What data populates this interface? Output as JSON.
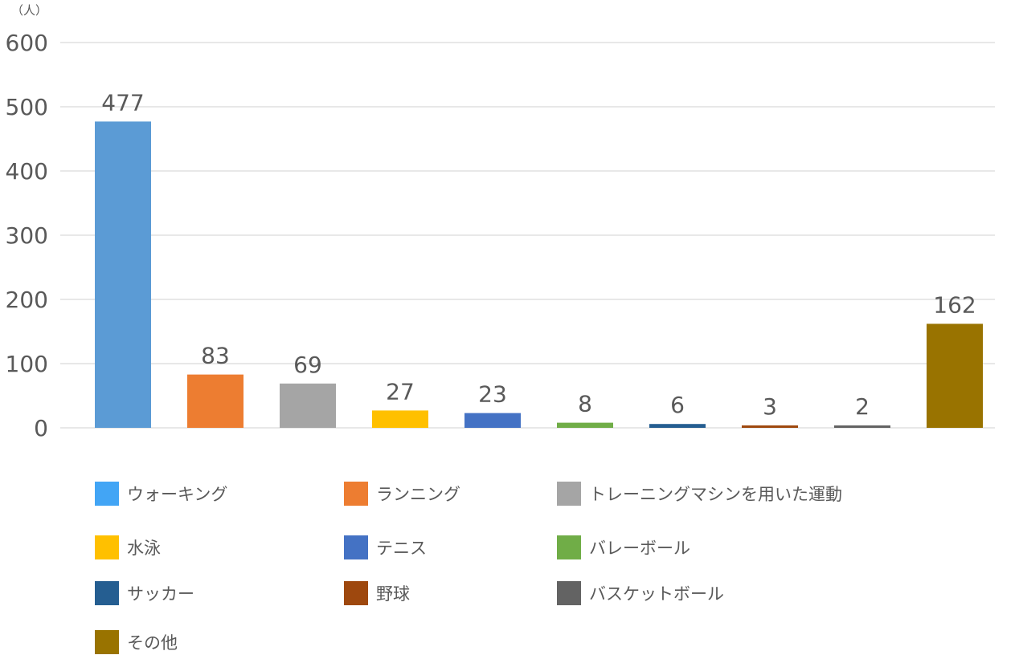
{
  "chart_data": {
    "type": "bar",
    "unit_label": "（人）",
    "categories": [
      "ウォーキング",
      "ランニング",
      "トレーニングマシンを用いた運動",
      "水泳",
      "テニス",
      "バレーボール",
      "サッカー",
      "野球",
      "バスケットボール",
      "その他"
    ],
    "values": [
      477,
      83,
      69,
      27,
      23,
      8,
      6,
      3,
      2,
      162
    ],
    "bar_colors": [
      "#5b9bd5",
      "#ed7d31",
      "#a5a5a5",
      "#ffc000",
      "#4472c4",
      "#70ad47",
      "#255e91",
      "#9e480e",
      "#636363",
      "#997300"
    ],
    "legend_colors": [
      "#42a5f5",
      "#ed7d31",
      "#a5a5a5",
      "#ffc000",
      "#4472c4",
      "#70ad47",
      "#255e91",
      "#9e480e",
      "#636363",
      "#997300"
    ],
    "yticks": [
      "0",
      "100",
      "200",
      "300",
      "400",
      "500",
      "600"
    ],
    "ylim": [
      0,
      600
    ],
    "grid": true,
    "legend_position": "bottom"
  }
}
